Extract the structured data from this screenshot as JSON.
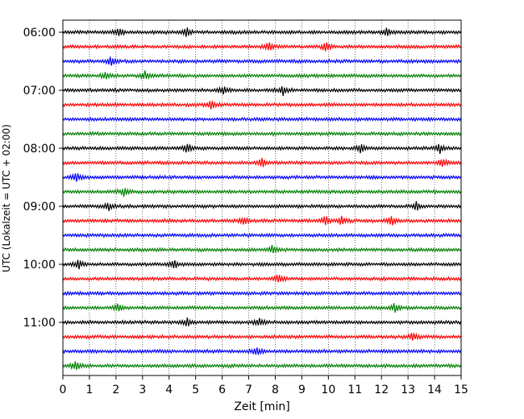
{
  "chart_data": {
    "type": "line",
    "title": "",
    "xlabel": "Zeit  [min]",
    "ylabel": "UTC (Lokalzeit = UTC + 02:00)",
    "xlim": [
      0,
      15
    ],
    "x_ticks": [
      0,
      1,
      2,
      3,
      4,
      5,
      6,
      7,
      8,
      9,
      10,
      11,
      12,
      13,
      14,
      15
    ],
    "y_ticks": [
      "06:00",
      "07:00",
      "08:00",
      "09:00",
      "10:00",
      "11:00"
    ],
    "y_range": [
      "06:00",
      "11:45"
    ],
    "trace_interval_min": 15,
    "grid": "vertical dotted at each minute",
    "trace_colors": [
      "#000000",
      "#ff0000",
      "#0000ff",
      "#008000"
    ],
    "series": [
      {
        "start": "06:00",
        "color": "#000000",
        "events_min": [
          2.1,
          4.65,
          12.2
        ]
      },
      {
        "start": "06:15",
        "color": "#ff0000",
        "events_min": [
          7.75,
          9.9
        ]
      },
      {
        "start": "06:30",
        "color": "#0000ff",
        "events_min": [
          1.8
        ]
      },
      {
        "start": "06:45",
        "color": "#008000",
        "events_min": [
          1.6,
          3.1
        ]
      },
      {
        "start": "07:00",
        "color": "#000000",
        "events_min": [
          6.05,
          8.3
        ]
      },
      {
        "start": "07:15",
        "color": "#ff0000",
        "events_min": [
          5.6
        ]
      },
      {
        "start": "07:30",
        "color": "#0000ff",
        "events_min": []
      },
      {
        "start": "07:45",
        "color": "#008000",
        "events_min": []
      },
      {
        "start": "08:00",
        "color": "#000000",
        "events_min": [
          4.7,
          11.2,
          14.2
        ]
      },
      {
        "start": "08:15",
        "color": "#ff0000",
        "events_min": [
          7.5,
          14.3
        ]
      },
      {
        "start": "08:30",
        "color": "#0000ff",
        "events_min": [
          0.5
        ]
      },
      {
        "start": "08:45",
        "color": "#008000",
        "events_min": [
          2.3
        ]
      },
      {
        "start": "09:00",
        "color": "#000000",
        "events_min": [
          1.7,
          13.3
        ]
      },
      {
        "start": "09:15",
        "color": "#ff0000",
        "events_min": [
          6.8,
          9.9,
          10.5,
          12.4
        ]
      },
      {
        "start": "09:30",
        "color": "#0000ff",
        "events_min": []
      },
      {
        "start": "09:45",
        "color": "#008000",
        "events_min": [
          7.9
        ]
      },
      {
        "start": "10:00",
        "color": "#000000",
        "events_min": [
          0.6,
          4.2
        ]
      },
      {
        "start": "10:15",
        "color": "#ff0000",
        "events_min": [
          8.1
        ]
      },
      {
        "start": "10:30",
        "color": "#0000ff",
        "events_min": []
      },
      {
        "start": "10:45",
        "color": "#008000",
        "events_min": [
          2.1,
          12.5
        ]
      },
      {
        "start": "11:00",
        "color": "#000000",
        "events_min": [
          4.7,
          7.4
        ]
      },
      {
        "start": "11:15",
        "color": "#ff0000",
        "events_min": [
          13.2
        ]
      },
      {
        "start": "11:30",
        "color": "#0000ff",
        "events_min": [
          7.3
        ]
      },
      {
        "start": "11:45",
        "color": "#008000",
        "events_min": [
          0.5
        ]
      }
    ]
  }
}
